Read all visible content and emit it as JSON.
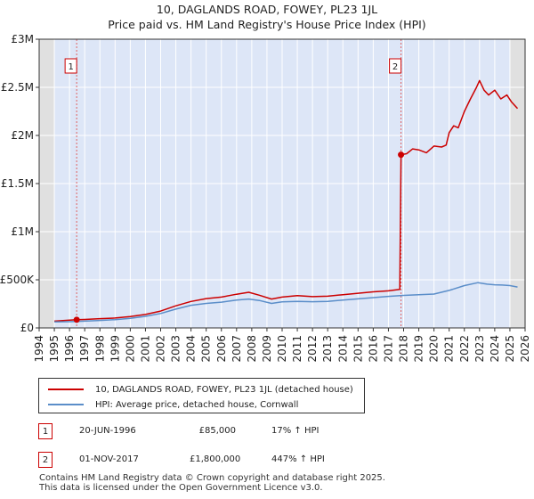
{
  "chart_data": {
    "type": "line",
    "title": "10, DAGLANDS ROAD, FOWEY, PL23 1JL",
    "subtitle": "Price paid vs. HM Land Registry's House Price Index (HPI)",
    "xlim": [
      1994,
      2026
    ],
    "ylim": [
      0,
      3000000
    ],
    "x_ticks": [
      "1994",
      "1995",
      "1996",
      "1997",
      "1998",
      "1999",
      "2000",
      "2001",
      "2002",
      "2003",
      "2004",
      "2005",
      "2006",
      "2007",
      "2008",
      "2009",
      "2010",
      "2011",
      "2012",
      "2013",
      "2014",
      "2015",
      "2016",
      "2017",
      "2018",
      "2019",
      "2020",
      "2021",
      "2022",
      "2023",
      "2024",
      "2025",
      "2026"
    ],
    "y_ticks": [
      {
        "value": 0,
        "label": "£0"
      },
      {
        "value": 500000,
        "label": "£500K"
      },
      {
        "value": 1000000,
        "label": "£1M"
      },
      {
        "value": 1500000,
        "label": "£1.5M"
      },
      {
        "value": 2000000,
        "label": "£2M"
      },
      {
        "value": 2500000,
        "label": "£2.5M"
      },
      {
        "value": 3000000,
        "label": "£3M"
      }
    ],
    "shaded_periods": [
      {
        "from": 1994,
        "to": 1995,
        "color": "#e0e0e0"
      },
      {
        "from": 1995,
        "to": 1996.47,
        "color": "#dde6f7"
      },
      {
        "from": 1996.47,
        "to": 2017.83,
        "color": "#dde6f7"
      },
      {
        "from": 2017.83,
        "to": 2025.0,
        "color": "#dde6f7"
      },
      {
        "from": 2025.0,
        "to": 2026,
        "color": "#e0e0e0"
      }
    ],
    "markers": [
      {
        "label": "1",
        "x": 1996.47,
        "y": 85000
      },
      {
        "label": "2",
        "x": 2017.83,
        "y": 1800000
      }
    ],
    "series": [
      {
        "name": "10, DAGLANDS ROAD, FOWEY, PL23 1JL (detached house)",
        "color": "#cc0000",
        "points": [
          [
            1995.0,
            70000
          ],
          [
            1996.47,
            85000
          ],
          [
            1997.0,
            88000
          ],
          [
            1998.0,
            96000
          ],
          [
            1999.0,
            103000
          ],
          [
            2000.0,
            118000
          ],
          [
            2001.0,
            140000
          ],
          [
            2002.0,
            175000
          ],
          [
            2003.0,
            230000
          ],
          [
            2004.0,
            275000
          ],
          [
            2005.0,
            305000
          ],
          [
            2006.0,
            320000
          ],
          [
            2007.0,
            350000
          ],
          [
            2007.8,
            370000
          ],
          [
            2008.5,
            340000
          ],
          [
            2009.3,
            300000
          ],
          [
            2010.0,
            320000
          ],
          [
            2011.0,
            335000
          ],
          [
            2012.0,
            325000
          ],
          [
            2013.0,
            330000
          ],
          [
            2014.0,
            345000
          ],
          [
            2015.0,
            360000
          ],
          [
            2016.0,
            375000
          ],
          [
            2017.0,
            385000
          ],
          [
            2017.75,
            400000
          ],
          [
            2017.83,
            1800000
          ],
          [
            2018.2,
            1810000
          ],
          [
            2018.6,
            1860000
          ],
          [
            2019.0,
            1850000
          ],
          [
            2019.5,
            1820000
          ],
          [
            2020.0,
            1890000
          ],
          [
            2020.5,
            1880000
          ],
          [
            2020.8,
            1900000
          ],
          [
            2021.0,
            2030000
          ],
          [
            2021.3,
            2100000
          ],
          [
            2021.6,
            2080000
          ],
          [
            2022.0,
            2250000
          ],
          [
            2022.4,
            2380000
          ],
          [
            2022.8,
            2500000
          ],
          [
            2023.0,
            2570000
          ],
          [
            2023.3,
            2470000
          ],
          [
            2023.6,
            2420000
          ],
          [
            2024.0,
            2470000
          ],
          [
            2024.4,
            2380000
          ],
          [
            2024.8,
            2420000
          ],
          [
            2025.1,
            2350000
          ],
          [
            2025.5,
            2280000
          ]
        ]
      },
      {
        "name": "HPI: Average price, detached house, Cornwall",
        "color": "#5b8ec9",
        "points": [
          [
            1995.0,
            62000
          ],
          [
            1996.0,
            65000
          ],
          [
            1997.0,
            70000
          ],
          [
            1998.0,
            78000
          ],
          [
            1999.0,
            86000
          ],
          [
            2000.0,
            100000
          ],
          [
            2001.0,
            120000
          ],
          [
            2002.0,
            150000
          ],
          [
            2003.0,
            195000
          ],
          [
            2004.0,
            235000
          ],
          [
            2005.0,
            255000
          ],
          [
            2006.0,
            268000
          ],
          [
            2007.0,
            290000
          ],
          [
            2007.8,
            300000
          ],
          [
            2008.5,
            285000
          ],
          [
            2009.3,
            255000
          ],
          [
            2010.0,
            270000
          ],
          [
            2011.0,
            275000
          ],
          [
            2012.0,
            272000
          ],
          [
            2013.0,
            275000
          ],
          [
            2014.0,
            290000
          ],
          [
            2015.0,
            302000
          ],
          [
            2016.0,
            315000
          ],
          [
            2017.0,
            328000
          ],
          [
            2018.0,
            338000
          ],
          [
            2019.0,
            345000
          ],
          [
            2020.0,
            352000
          ],
          [
            2021.0,
            390000
          ],
          [
            2022.0,
            440000
          ],
          [
            2022.9,
            470000
          ],
          [
            2023.5,
            455000
          ],
          [
            2024.0,
            448000
          ],
          [
            2024.5,
            445000
          ],
          [
            2025.0,
            440000
          ],
          [
            2025.5,
            425000
          ]
        ]
      }
    ]
  },
  "legend": [
    {
      "label": "10, DAGLANDS ROAD, FOWEY, PL23 1JL (detached house)",
      "color": "#cc0000"
    },
    {
      "label": "HPI: Average price, detached house, Cornwall",
      "color": "#5b8ec9"
    }
  ],
  "transactions": [
    {
      "num": "1",
      "date": "20-JUN-1996",
      "price": "£85,000",
      "hpi": "17% ↑ HPI"
    },
    {
      "num": "2",
      "date": "01-NOV-2017",
      "price": "£1,800,000",
      "hpi": "447% ↑ HPI"
    }
  ],
  "footer": {
    "line1": "Contains HM Land Registry data © Crown copyright and database right 2025.",
    "line2": "This data is licensed under the Open Government Licence v3.0."
  }
}
